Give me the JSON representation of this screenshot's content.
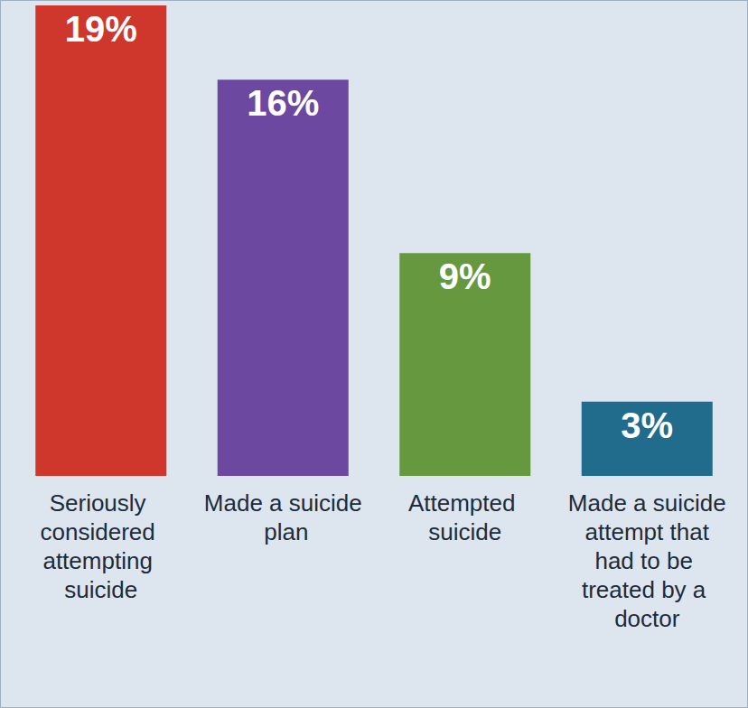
{
  "chart_data": {
    "type": "bar",
    "categories": [
      "Seriously considered attempting suicide",
      "Made a suicide plan",
      "Attempted suicide",
      "Made a suicide attempt that had to be treated by a doctor"
    ],
    "values": [
      19,
      16,
      9,
      3
    ],
    "value_labels": [
      "19%",
      "16%",
      "9%",
      "3%"
    ],
    "colors": [
      "#d0372c",
      "#6d48a0",
      "#66983f",
      "#216b8c"
    ],
    "ylim": [
      0,
      19
    ],
    "grid": false,
    "data_labels": true,
    "tick_labels": "x"
  }
}
